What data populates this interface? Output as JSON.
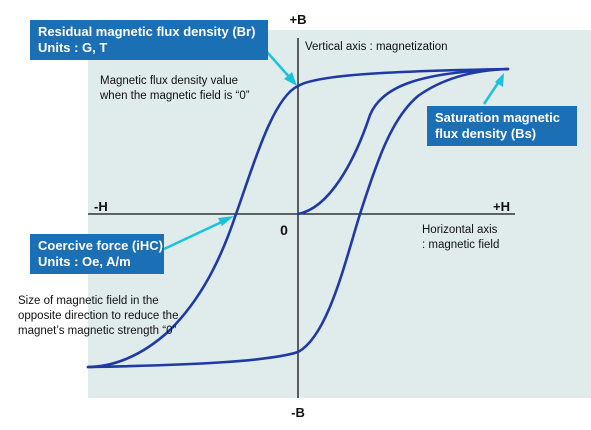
{
  "axes": {
    "vertical_positive": "+B",
    "vertical_negative": "-B",
    "horizontal_positive": "+H",
    "horizontal_negative": "-H",
    "origin": "0"
  },
  "notes": {
    "vertical_axis": "Vertical axis : magnetization",
    "horizontal_axis": [
      "Horizontal axis",
      ": magnetic field"
    ],
    "br_description": [
      "Magnetic flux density value",
      "when the magnetic field is “0”"
    ],
    "coercive_description": [
      "Size of magnetic field in the",
      "opposite direction to reduce the",
      "magnet’s magnetic strength “0”"
    ]
  },
  "callouts": {
    "residual": [
      "Residual magnetic flux density (Br)",
      "Units : G, T"
    ],
    "saturation": [
      "Saturation magnetic",
      "flux density (Bs)"
    ],
    "coercive": [
      "Coercive force (iHC)",
      "Units : Oe, A/m"
    ]
  },
  "colors": {
    "curve": "#1f3aa6",
    "callout_bg": "#1a6fb5",
    "arrow": "#19c3dc",
    "plot_bg": "#e0ebeb"
  }
}
